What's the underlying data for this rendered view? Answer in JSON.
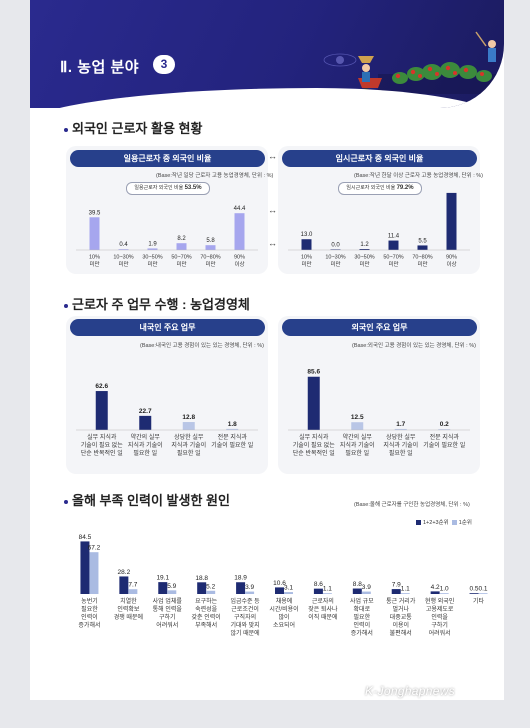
{
  "header": {
    "chapter_title": "Ⅱ. 농업 분야",
    "chapter_number": "3",
    "colors": {
      "banner": "#2a2a8e",
      "accent": "#27408b"
    }
  },
  "section1": {
    "title": "외국인 근로자 활용 현황",
    "left": {
      "pill": "일용근로자 중 외국인 비율",
      "note": "(Base:작년 일당 근로자 고용 농업경영체, 단위 : %)",
      "ratio_label": "일용근로자 외국인 비율",
      "ratio_value": "53.5%"
    },
    "right": {
      "pill": "임시근로자 중 외국인 비율",
      "note": "(Base:작년 한달 이상 근로자 고용 농업경영체, 단위 : %)",
      "ratio_label": "임시근로자 외국인 비율",
      "ratio_value": "79.2%"
    }
  },
  "section2": {
    "title": "근로자 주 업무 수행 : 농업경영체",
    "left": {
      "pill": "내국인 주요 업무",
      "note": "(Base:내국인 고용 경험이 있는 있는 경영체, 단위 : %)"
    },
    "right": {
      "pill": "외국인 주요 업무",
      "note": "(Base:외국인 고용 경험이 있는 있는 경영체, 단위 : %)"
    }
  },
  "section3": {
    "title": "올해 부족 인력이 발생한 원인",
    "note": "(Base:올해 근로자를 구인한 농업경영체, 단위 : %)",
    "legend": [
      "1+2+3순위",
      "1순위"
    ]
  },
  "watermark": {
    "text": "K-Jonghapnews"
  },
  "chart_data": [
    {
      "type": "bar",
      "title": "일용근로자 중 외국인 비율",
      "categories": [
        "10% 미만",
        "10~30% 미만",
        "30~50% 미만",
        "50~70% 미만",
        "70~80% 미만",
        "90% 이상"
      ],
      "values": [
        39.5,
        0.4,
        1.9,
        8.2,
        5.8,
        44.4
      ],
      "colors": [
        "#a6a6ee",
        "#a6a6ee",
        "#a6a6ee",
        "#a6a6ee",
        "#a6a6ee",
        "#a6a6ee"
      ],
      "ylim": [
        0,
        70
      ]
    },
    {
      "type": "bar",
      "title": "임시근로자 중 외국인 비율",
      "categories": [
        "10% 미만",
        "10~30% 미만",
        "30~50% 미만",
        "50~70% 미만",
        "70~80% 미만",
        "90% 이상"
      ],
      "values": [
        13.0,
        0.0,
        1.2,
        11.4,
        5.5,
        68.9
      ],
      "colors": [
        "#1e2b72",
        "#1e2b72",
        "#1e2b72",
        "#1e2b72",
        "#1e2b72",
        "#1e2b72"
      ],
      "ylim": [
        0,
        70
      ]
    },
    {
      "type": "bar",
      "title": "내국인 주요 업무",
      "categories": [
        "실무 지식과 기술이 필요 없는 단순 반복적인 일",
        "약간의 실무 지식과 기술이 필요한 일",
        "상당한 실무 지식과 기술이 필요한 일",
        "전문 지식과 기술이 필요한 일"
      ],
      "values": [
        62.6,
        22.7,
        12.8,
        1.8
      ],
      "colors": [
        "#1e2b72",
        "#1e2b72",
        "#b9c6e6",
        "#b9c6e6"
      ],
      "ylim": [
        0,
        90
      ]
    },
    {
      "type": "bar",
      "title": "외국인 주요 업무",
      "categories": [
        "실무 지식과 기술이 필요 없는 단순 반복적인 일",
        "약간의 실무 지식과 기술이 필요한 일",
        "상당한 실무 지식과 기술이 필요한 일",
        "전문 지식과 기술이 필요한 일"
      ],
      "values": [
        85.6,
        12.5,
        1.7,
        0.2
      ],
      "colors": [
        "#1e2b72",
        "#b9c6e6",
        "#b9c6e6",
        "#b9c6e6"
      ],
      "ylim": [
        0,
        90
      ]
    },
    {
      "type": "bar",
      "title": "올해 부족 인력이 발생한 원인",
      "categories": [
        "농번기 필요한 인력이 증가해서",
        "치열한 인력확보 경쟁 때문에",
        "사업 업체를 통해 인력을 구하기 어려워서",
        "요구하는 숙련성을 갖춘 인력이 부족해서",
        "임금수준 등 근로조건이 구직자의 기대와 맞지 않기 때문에",
        "채용에 시간/비용이 많이 소요되어",
        "근로자의 잦은 퇴사나 이직 때문에",
        "사업 규모 확대로 필요한 인력이 증가해서",
        "통근 거리가 멀거나 대중교통 이용이 불편해서",
        "현행 외국인 고용제도로 인력을 구하기 어려워서",
        "기타"
      ],
      "series": [
        {
          "name": "1+2+3순위",
          "values": [
            84.5,
            28.2,
            19.1,
            18.8,
            18.9,
            10.6,
            8.6,
            8.8,
            7.9,
            4.2,
            0.5
          ],
          "color": "#1e2b72"
        },
        {
          "name": "1순위",
          "values": [
            67.2,
            7.7,
            5.9,
            5.2,
            3.9,
            3.1,
            1.1,
            3.9,
            1.1,
            1.0,
            0.1
          ],
          "color": "#aabbe2"
        }
      ],
      "ylim": [
        0,
        90
      ]
    }
  ]
}
